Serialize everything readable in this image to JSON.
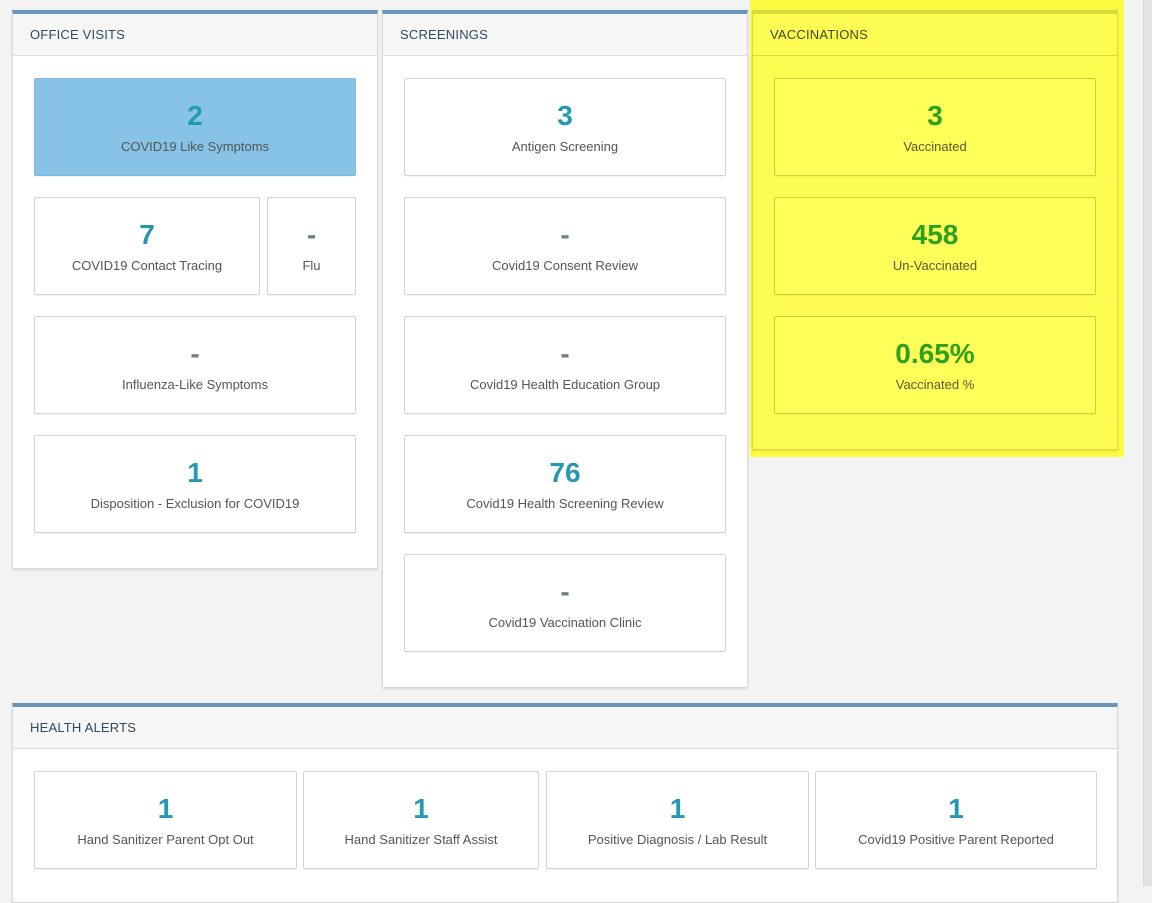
{
  "office_visits": {
    "title": "OFFICE VISITS",
    "tiles": [
      {
        "value": "2",
        "label": "COVID19 Like Symptoms"
      },
      {
        "value": "7",
        "label": "COVID19 Contact Tracing"
      },
      {
        "value": "-",
        "label": "Flu"
      },
      {
        "value": "-",
        "label": "Influenza-Like Symptoms"
      },
      {
        "value": "1",
        "label": "Disposition - Exclusion for COVID19"
      }
    ]
  },
  "screenings": {
    "title": "SCREENINGS",
    "tiles": [
      {
        "value": "3",
        "label": "Antigen Screening"
      },
      {
        "value": "-",
        "label": "Covid19 Consent Review"
      },
      {
        "value": "-",
        "label": "Covid19 Health Education Group"
      },
      {
        "value": "76",
        "label": "Covid19 Health Screening Review"
      },
      {
        "value": "-",
        "label": "Covid19 Vaccination Clinic"
      }
    ]
  },
  "vaccinations": {
    "title": "VACCINATIONS",
    "tiles": [
      {
        "value": "3",
        "label": "Vaccinated"
      },
      {
        "value": "458",
        "label": "Un-Vaccinated"
      },
      {
        "value": "0.65%",
        "label": "Vaccinated %"
      }
    ]
  },
  "health_alerts": {
    "title": "HEALTH ALERTS",
    "tiles": [
      {
        "value": "1",
        "label": "Hand Sanitizer Parent Opt Out"
      },
      {
        "value": "1",
        "label": "Hand Sanitizer Staff Assist"
      },
      {
        "value": "1",
        "label": "Positive Diagnosis / Lab Result"
      },
      {
        "value": "1",
        "label": "Covid19 Positive Parent Reported"
      }
    ]
  },
  "colors": {
    "accent_blue": "#2599b2",
    "highlight_yellow": "#fbfb42",
    "vacc_green": "#2ca21c",
    "active_tile": "#86c3e7"
  }
}
